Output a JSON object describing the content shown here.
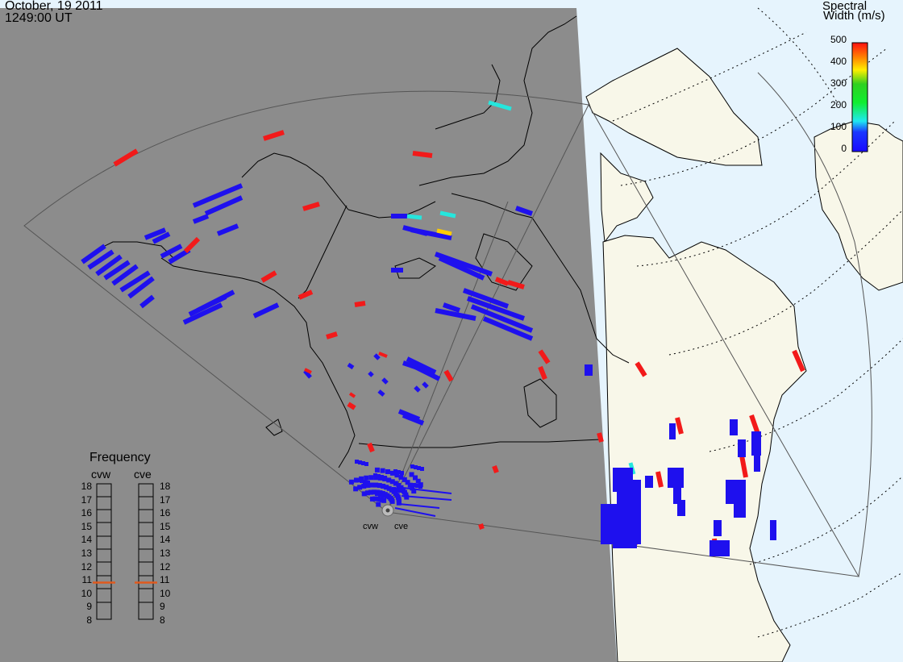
{
  "header": {
    "date": "October, 19 2011",
    "time": "1249:00 UT"
  },
  "colorbar": {
    "title_line1": "Spectral",
    "title_line2": "Width (m/s)",
    "ticks": [
      "500",
      "400",
      "300",
      "200",
      "100",
      "0"
    ],
    "range": [
      0,
      500
    ]
  },
  "frequency_panel": {
    "title": "Frequency",
    "columns": [
      "cvw",
      "cve"
    ],
    "ticks": [
      "18",
      "17",
      "16",
      "15",
      "14",
      "13",
      "12",
      "11",
      "10",
      "9",
      "8"
    ],
    "current_mhz": {
      "cvw": 10.8,
      "cve": 10.8
    }
  },
  "radars": [
    {
      "code": "cvw",
      "label": "cvw"
    },
    {
      "code": "cve",
      "label": "cve"
    }
  ],
  "colors": {
    "night_shade": "#8c8c8c",
    "day_land": "#f8f7e9",
    "ocean_day": "#e6f4fd",
    "echo_low": "#1e10ee",
    "echo_high": "#f21a1a",
    "echo_mid": "#25e6dd",
    "freq_marker": "#e05a1e"
  }
}
